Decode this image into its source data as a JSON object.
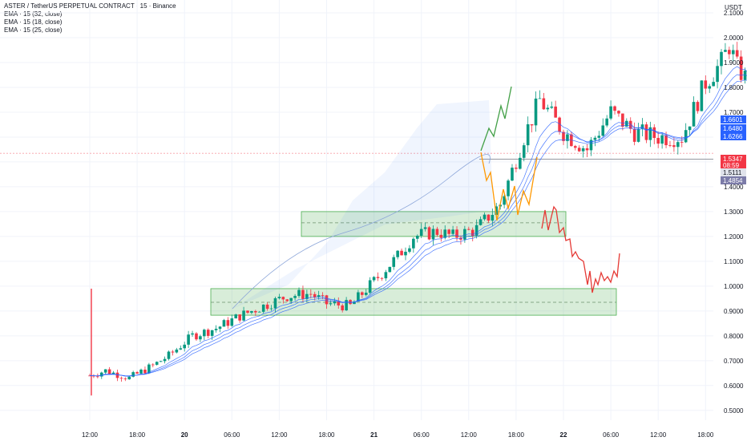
{
  "chart_data": {
    "type": "candlestick",
    "title": "ASTER / TetherUS PERPETUAL CONTRACT · 15 · Binance",
    "indicators": [
      "EMA · 15 (32, close)",
      "EMA · 15 (18, close)",
      "EMA · 15 (25, close)"
    ],
    "currency": "USDT",
    "y_ticks": [
      "2.1000",
      "2.0000",
      "1.9000",
      "1.8000",
      "1.7000",
      "1.6000",
      "1.5000",
      "1.4000",
      "1.3000",
      "1.2000",
      "1.1000",
      "1.0000",
      "0.9000",
      "0.8000",
      "0.7000",
      "0.6000",
      "0.5000"
    ],
    "x_ticks": [
      "12:00",
      "18:00",
      "20",
      "06:00",
      "12:00",
      "18:00",
      "21",
      "06:00",
      "12:00",
      "18:00",
      "22",
      "06:00",
      "12:00",
      "18:00"
    ],
    "ylim": [
      0.4735,
      2.1065
    ],
    "price_labels": [
      {
        "text": "1.6601",
        "color": "#2962ff"
      },
      {
        "text": "1.6480",
        "color": "#2962ff"
      },
      {
        "text": "1.6266",
        "color": "#2962ff"
      },
      {
        "text": "1.5347",
        "color": "#f23645"
      },
      {
        "text": "08:59",
        "color": "#f23645"
      },
      {
        "text": "1.5111",
        "color": "#d1d4dc"
      },
      {
        "text": "1.4854",
        "color": "#7b7ba8"
      }
    ],
    "current_price": 1.5347,
    "horizontal_line": 1.5111,
    "zones": [
      {
        "from": 1.2,
        "to": 1.3,
        "mid": 1.255
      },
      {
        "from": 0.883,
        "to": 0.99,
        "mid": 0.935
      }
    ],
    "colors": {
      "up": "#089981",
      "down": "#f23645",
      "ema": "#2962ff",
      "zone": "#4caf50",
      "path_up": "#43a047",
      "path_alt": "#ff9800",
      "path_down": "#e53935"
    }
  }
}
